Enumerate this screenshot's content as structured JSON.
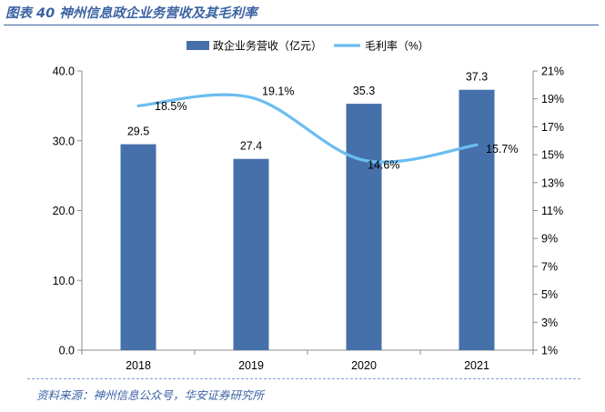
{
  "header": {
    "figure_title": "图表 40 神州信息政企业务营收及其毛利率"
  },
  "footer": {
    "source": "资料来源：神州信息公众号，华安证券研究所"
  },
  "chart_data": {
    "type": "bar",
    "categories": [
      "2018",
      "2019",
      "2020",
      "2021"
    ],
    "series": [
      {
        "name": "政企业务营收（亿元）",
        "kind": "bar",
        "axis": "left",
        "values": [
          29.5,
          27.4,
          35.3,
          37.3
        ],
        "labels": [
          "29.5",
          "27.4",
          "35.3",
          "37.3"
        ],
        "color": "#4670aa"
      },
      {
        "name": "毛利率（%）",
        "kind": "line",
        "axis": "right",
        "smooth": true,
        "values": [
          18.5,
          19.1,
          14.6,
          15.7
        ],
        "labels": [
          "18.5%",
          "19.1%",
          "14.6%",
          "15.7%"
        ],
        "color": "#6bbdf0"
      }
    ],
    "y_left": {
      "min": 0,
      "max": 40,
      "ticks": [
        "0.0",
        "10.0",
        "20.0",
        "30.0",
        "40.0"
      ]
    },
    "y_right": {
      "min": 1,
      "max": 21,
      "ticks": [
        "1%",
        "3%",
        "5%",
        "7%",
        "9%",
        "11%",
        "13%",
        "15%",
        "17%",
        "19%",
        "21%"
      ]
    },
    "legend_position": "top-center",
    "grid": false
  }
}
